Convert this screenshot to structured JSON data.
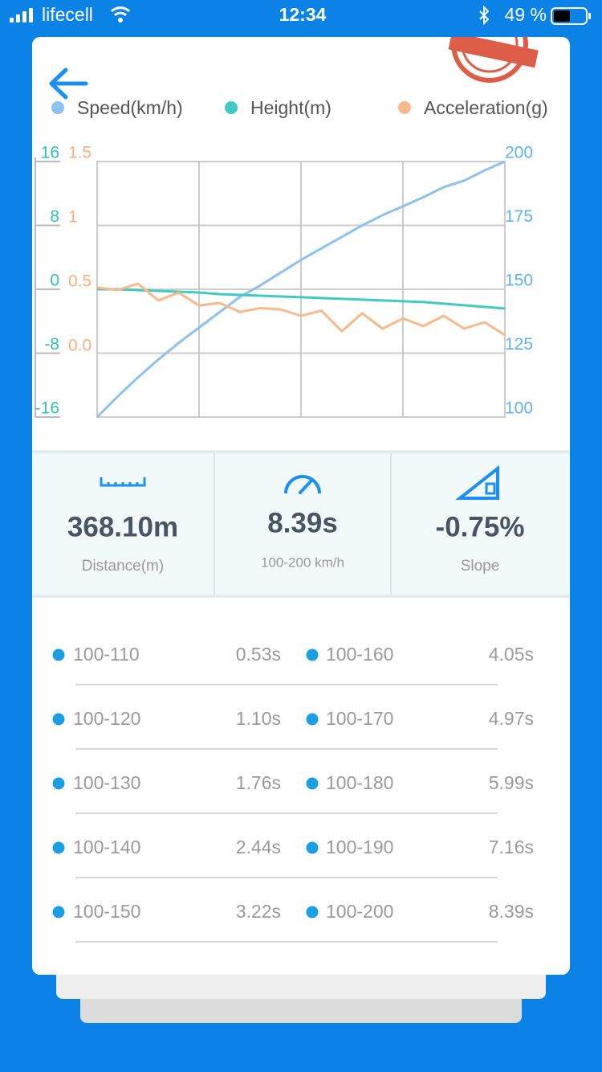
{
  "status": {
    "carrier": "lifecell",
    "time": "12:34",
    "battery": "49 %"
  },
  "chart_data": {
    "type": "line",
    "series": [
      {
        "name": "Speed(km/h)",
        "color": "#8cc2ef",
        "axis": "y2",
        "values": [
          100,
          108,
          115.5,
          122.5,
          129,
          135,
          141,
          147,
          151.5,
          156.5,
          161.5,
          166,
          170.5,
          175,
          179,
          182.5,
          186,
          190,
          192.5,
          196.5,
          200
        ]
      },
      {
        "name": "Height(m)",
        "color": "#40cbc2",
        "axis": "y",
        "values": [
          0,
          0,
          -0.1,
          -0.2,
          -0.3,
          -0.4,
          -0.6,
          -0.7,
          -0.8,
          -0.9,
          -1,
          -1.1,
          -1.2,
          -1.3,
          -1.4,
          -1.5,
          -1.6,
          -1.8,
          -2,
          -2.2,
          -2.4
        ]
      },
      {
        "name": "Acceleration(g)",
        "color": "#f8b98b",
        "axis": "y3",
        "values": [
          0.52,
          0.5,
          0.55,
          0.42,
          0.48,
          0.38,
          0.4,
          0.33,
          0.36,
          0.35,
          0.3,
          0.34,
          0.18,
          0.32,
          0.2,
          0.28,
          0.22,
          0.3,
          0.2,
          0.25,
          0.15
        ]
      }
    ],
    "ylim": [
      -16,
      16
    ],
    "yticks": [
      16,
      8,
      0,
      -8,
      -16
    ],
    "y2lim": [
      100,
      200
    ],
    "y2ticks": [
      200,
      175,
      150,
      125,
      100
    ],
    "y3lim": [
      -0.4875,
      1.5
    ],
    "y3ticks": [
      1.5,
      1,
      0.5,
      {
        "value": 0,
        "label": "0.0"
      }
    ],
    "grid": true
  },
  "stats": [
    {
      "value": "368.10m",
      "label": "Distance(m)"
    },
    {
      "value": "8.39s",
      "label": "100-200 km/h"
    },
    {
      "value": "-0.75%",
      "label": "Slope"
    }
  ],
  "splits": [
    {
      "label": "100-110",
      "time": "0.53s"
    },
    {
      "label": "100-120",
      "time": "1.10s"
    },
    {
      "label": "100-130",
      "time": "1.76s"
    },
    {
      "label": "100-140",
      "time": "2.44s"
    },
    {
      "label": "100-150",
      "time": "3.22s"
    },
    {
      "label": "100-160",
      "time": "4.05s"
    },
    {
      "label": "100-170",
      "time": "4.97s"
    },
    {
      "label": "100-180",
      "time": "5.99s"
    },
    {
      "label": "100-190",
      "time": "7.16s"
    },
    {
      "label": "100-200",
      "time": "8.39s"
    }
  ]
}
